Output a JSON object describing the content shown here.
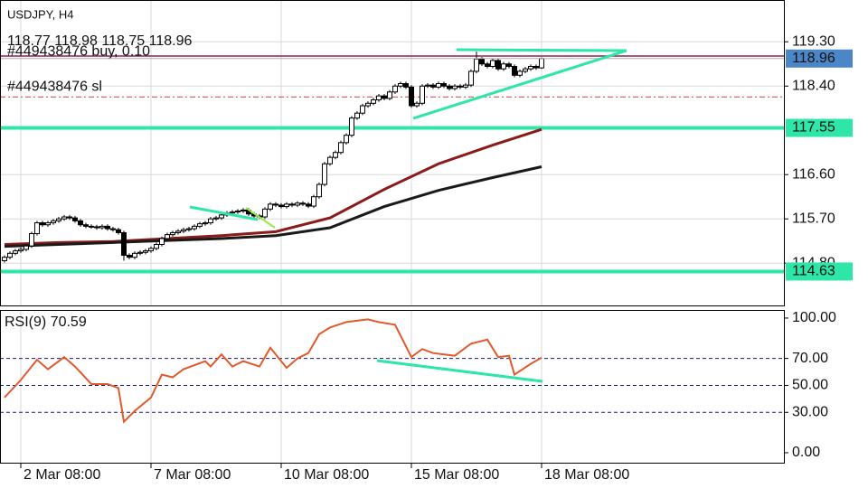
{
  "chart_data": {
    "type": "candlestick",
    "symbol": "USDJPY, H4",
    "ylim": [
      113.94,
      120.15
    ],
    "yticks": [
      {
        "value": 119.3,
        "label": "119.30"
      },
      {
        "value": 118.4,
        "label": "118.40"
      },
      {
        "value": 116.6,
        "label": "116.60"
      },
      {
        "value": 115.7,
        "label": "115.70"
      },
      {
        "value": 114.8,
        "label": "114.80"
      }
    ],
    "xlim": [
      -0.83,
      143.67
    ],
    "xticks": [
      {
        "value": 3,
        "label": "2 Mar 08:00"
      },
      {
        "value": 27,
        "label": "7 Mar 08:00"
      },
      {
        "value": 51,
        "label": "10 Mar 08:00"
      },
      {
        "value": 75,
        "label": "15 Mar 08:00"
      },
      {
        "value": 99,
        "label": "18 Mar 08:00"
      }
    ],
    "grid": true,
    "last_price_color": "#4a86c8",
    "ohlc": [
      [
        114.85,
        114.96,
        114.81,
        114.92
      ],
      [
        114.92,
        115.04,
        114.88,
        115.0
      ],
      [
        115.0,
        115.09,
        114.96,
        115.05
      ],
      [
        115.05,
        115.12,
        115.01,
        115.08
      ],
      [
        115.08,
        115.19,
        115.04,
        115.15
      ],
      [
        115.15,
        115.44,
        115.11,
        115.4
      ],
      [
        115.4,
        115.66,
        115.36,
        115.62
      ],
      [
        115.62,
        115.66,
        115.54,
        115.58
      ],
      [
        115.58,
        115.66,
        115.54,
        115.62
      ],
      [
        115.62,
        115.7,
        115.58,
        115.66
      ],
      [
        115.66,
        115.74,
        115.62,
        115.7
      ],
      [
        115.7,
        115.78,
        115.66,
        115.74
      ],
      [
        115.74,
        115.78,
        115.68,
        115.72
      ],
      [
        115.72,
        115.76,
        115.62,
        115.66
      ],
      [
        115.66,
        115.7,
        115.54,
        115.58
      ],
      [
        115.58,
        115.62,
        115.51,
        115.55
      ],
      [
        115.55,
        115.59,
        115.5,
        115.54
      ],
      [
        115.54,
        115.58,
        115.48,
        115.52
      ],
      [
        115.52,
        115.59,
        115.48,
        115.55
      ],
      [
        115.55,
        115.59,
        115.46,
        115.5
      ],
      [
        115.5,
        115.54,
        115.44,
        115.48
      ],
      [
        115.48,
        115.52,
        115.38,
        115.42
      ],
      [
        115.42,
        115.46,
        114.85,
        114.96
      ],
      [
        114.96,
        115.0,
        114.88,
        114.92
      ],
      [
        114.92,
        115.04,
        114.88,
        115.0
      ],
      [
        115.0,
        115.06,
        114.96,
        115.02
      ],
      [
        115.02,
        115.09,
        114.98,
        115.05
      ],
      [
        115.05,
        115.14,
        115.01,
        115.1
      ],
      [
        115.1,
        115.22,
        115.06,
        115.18
      ],
      [
        115.18,
        115.34,
        115.14,
        115.3
      ],
      [
        115.3,
        115.42,
        115.26,
        115.38
      ],
      [
        115.38,
        115.46,
        115.34,
        115.42
      ],
      [
        115.42,
        115.49,
        115.38,
        115.45
      ],
      [
        115.45,
        115.52,
        115.41,
        115.48
      ],
      [
        115.48,
        115.54,
        115.44,
        115.5
      ],
      [
        115.5,
        115.59,
        115.46,
        115.55
      ],
      [
        115.55,
        115.64,
        115.51,
        115.6
      ],
      [
        115.6,
        115.66,
        115.56,
        115.62
      ],
      [
        115.62,
        115.74,
        115.58,
        115.7
      ],
      [
        115.7,
        115.76,
        115.66,
        115.72
      ],
      [
        115.72,
        115.82,
        115.68,
        115.78
      ],
      [
        115.78,
        115.86,
        115.74,
        115.82
      ],
      [
        115.82,
        115.88,
        115.78,
        115.84
      ],
      [
        115.84,
        115.9,
        115.8,
        115.86
      ],
      [
        115.86,
        115.92,
        115.82,
        115.88
      ],
      [
        115.88,
        115.92,
        115.76,
        115.8
      ],
      [
        115.8,
        115.84,
        115.72,
        115.76
      ],
      [
        115.76,
        115.8,
        115.7,
        115.74
      ],
      [
        115.74,
        115.94,
        115.7,
        115.9
      ],
      [
        115.9,
        116.04,
        115.86,
        116.0
      ],
      [
        116.0,
        116.04,
        115.94,
        115.98
      ],
      [
        115.98,
        116.02,
        115.91,
        115.95
      ],
      [
        115.95,
        116.04,
        115.91,
        116.0
      ],
      [
        116.0,
        116.04,
        115.94,
        115.98
      ],
      [
        115.98,
        116.06,
        115.94,
        116.02
      ],
      [
        116.02,
        116.06,
        115.96,
        116.0
      ],
      [
        116.0,
        116.04,
        115.92,
        115.96
      ],
      [
        115.96,
        116.19,
        115.92,
        116.15
      ],
      [
        116.15,
        116.44,
        116.11,
        116.4
      ],
      [
        116.4,
        116.86,
        116.36,
        116.82
      ],
      [
        116.82,
        116.99,
        116.78,
        116.95
      ],
      [
        116.95,
        117.09,
        116.91,
        117.05
      ],
      [
        117.05,
        117.29,
        117.01,
        117.25
      ],
      [
        117.25,
        117.44,
        117.21,
        117.4
      ],
      [
        117.4,
        117.79,
        117.36,
        117.75
      ],
      [
        117.75,
        117.89,
        117.71,
        117.85
      ],
      [
        117.85,
        118.04,
        117.81,
        118.0
      ],
      [
        118.0,
        118.09,
        117.96,
        118.05
      ],
      [
        118.05,
        118.16,
        118.01,
        118.12
      ],
      [
        118.12,
        118.24,
        118.08,
        118.2
      ],
      [
        118.2,
        118.24,
        118.11,
        118.15
      ],
      [
        118.15,
        118.32,
        118.11,
        118.28
      ],
      [
        118.28,
        118.44,
        118.24,
        118.4
      ],
      [
        118.4,
        118.49,
        118.36,
        118.45
      ],
      [
        118.45,
        118.49,
        118.34,
        118.38
      ],
      [
        118.38,
        118.42,
        117.96,
        118.0
      ],
      [
        118.0,
        118.09,
        117.96,
        118.05
      ],
      [
        118.05,
        118.44,
        118.01,
        118.4
      ],
      [
        118.4,
        118.46,
        118.36,
        118.42
      ],
      [
        118.42,
        118.46,
        118.34,
        118.38
      ],
      [
        118.38,
        118.49,
        118.34,
        118.45
      ],
      [
        118.45,
        118.49,
        118.36,
        118.4
      ],
      [
        118.4,
        118.44,
        118.31,
        118.35
      ],
      [
        118.35,
        118.44,
        118.31,
        118.4
      ],
      [
        118.4,
        118.44,
        118.34,
        118.38
      ],
      [
        118.38,
        118.46,
        118.34,
        118.42
      ],
      [
        118.42,
        118.74,
        118.38,
        118.7
      ],
      [
        118.7,
        119.1,
        118.66,
        118.95
      ],
      [
        118.95,
        118.99,
        118.81,
        118.85
      ],
      [
        118.85,
        118.89,
        118.76,
        118.8
      ],
      [
        118.8,
        118.96,
        118.76,
        118.92
      ],
      [
        118.92,
        118.96,
        118.71,
        118.75
      ],
      [
        118.75,
        118.89,
        118.71,
        118.85
      ],
      [
        118.85,
        118.89,
        118.76,
        118.8
      ],
      [
        118.8,
        118.84,
        118.58,
        118.62
      ],
      [
        118.62,
        118.74,
        118.58,
        118.7
      ],
      [
        118.7,
        118.79,
        118.66,
        118.75
      ],
      [
        118.75,
        118.84,
        118.71,
        118.8
      ],
      [
        118.8,
        118.84,
        118.73,
        118.77
      ],
      [
        118.77,
        118.98,
        118.75,
        118.96
      ]
    ],
    "moving_averages": [
      {
        "color": "#8b1a1a",
        "x": [
          0,
          10,
          20,
          30,
          40,
          50,
          60,
          70,
          80,
          90,
          99
        ],
        "values": [
          115.18,
          115.22,
          115.24,
          115.3,
          115.36,
          115.44,
          115.72,
          116.3,
          116.82,
          117.2,
          117.52
        ]
      },
      {
        "color": "#1a1a1a",
        "x": [
          0,
          10,
          20,
          30,
          40,
          50,
          60,
          70,
          80,
          90,
          99
        ],
        "values": [
          115.14,
          115.18,
          115.22,
          115.26,
          115.3,
          115.36,
          115.52,
          115.95,
          116.28,
          116.54,
          116.76
        ]
      }
    ],
    "hlines": [
      {
        "value": 117.55,
        "color": "#2ee6a8"
      },
      {
        "value": 114.63,
        "color": "#2ee6a8"
      }
    ],
    "orders": [
      {
        "label": "#449438476 buy, 0.10",
        "price": 119.01,
        "color": "#8b2252",
        "dash": false
      },
      {
        "label": "#449438476 sl",
        "price": 118.18,
        "color": "#d04040",
        "dash": true
      }
    ],
    "rsi": {
      "label": "RSI(9)",
      "color": "#e05a2b",
      "ylim": [
        -7.4,
        106
      ],
      "yticks": [
        {
          "value": 100,
          "label": "100.00"
        },
        {
          "value": 70,
          "label": "70.00"
        },
        {
          "value": 50,
          "label": "50.00"
        },
        {
          "value": 30,
          "label": "30.00"
        },
        {
          "value": 0,
          "label": "0.00"
        }
      ],
      "levels": [
        70,
        50,
        30
      ],
      "x": [
        0,
        3,
        6,
        8,
        11,
        13,
        16,
        19,
        21,
        22,
        24,
        27,
        29,
        31,
        33,
        37,
        38,
        40,
        42,
        44,
        47,
        49,
        52,
        54,
        56,
        58,
        60,
        63,
        67,
        69,
        72,
        75,
        77,
        79,
        83,
        86,
        89,
        91,
        93,
        94,
        97,
        99
      ],
      "values": [
        41,
        54,
        69,
        62,
        71,
        64,
        51,
        51,
        48,
        23,
        31,
        41,
        58,
        56,
        62,
        68,
        64,
        73,
        64,
        68,
        64,
        78,
        63,
        70,
        74,
        88,
        93,
        97,
        99,
        97,
        95,
        71,
        77,
        74,
        72,
        81,
        84,
        71,
        72,
        58,
        66,
        70.59
      ]
    }
  }
}
